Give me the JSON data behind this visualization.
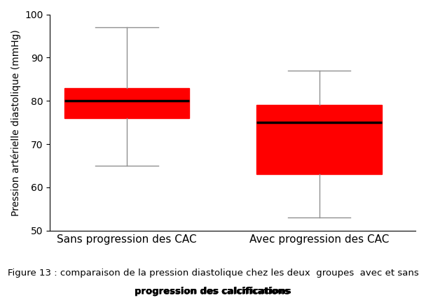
{
  "groups": [
    "Sans progression des CAC",
    "Avec progression des CAC"
  ],
  "box1": {
    "whislo": 65,
    "q1": 76,
    "med": 80,
    "q3": 83,
    "whishi": 97
  },
  "box2": {
    "whislo": 53,
    "q1": 63,
    "med": 75,
    "q3": 79,
    "whishi": 87
  },
  "ylim": [
    50,
    100
  ],
  "yticks": [
    50,
    60,
    70,
    80,
    90,
    100
  ],
  "ylabel": "Pression artérielle diastolique (mmHg)",
  "box_color": "#FF0000",
  "median_color": "#000000",
  "whisker_color": "#909090",
  "cap_color": "#909090",
  "background_color": "#FFFFFF",
  "caption_line1": "Figure 13 : comparaison de la pression diastolique chez les deux  groupes  avec et sans",
  "caption_line2": "progression des calcifications",
  "ylabel_fontsize": 10,
  "tick_fontsize": 10,
  "xlabel_fontsize": 11,
  "caption_fontsize": 9.5
}
